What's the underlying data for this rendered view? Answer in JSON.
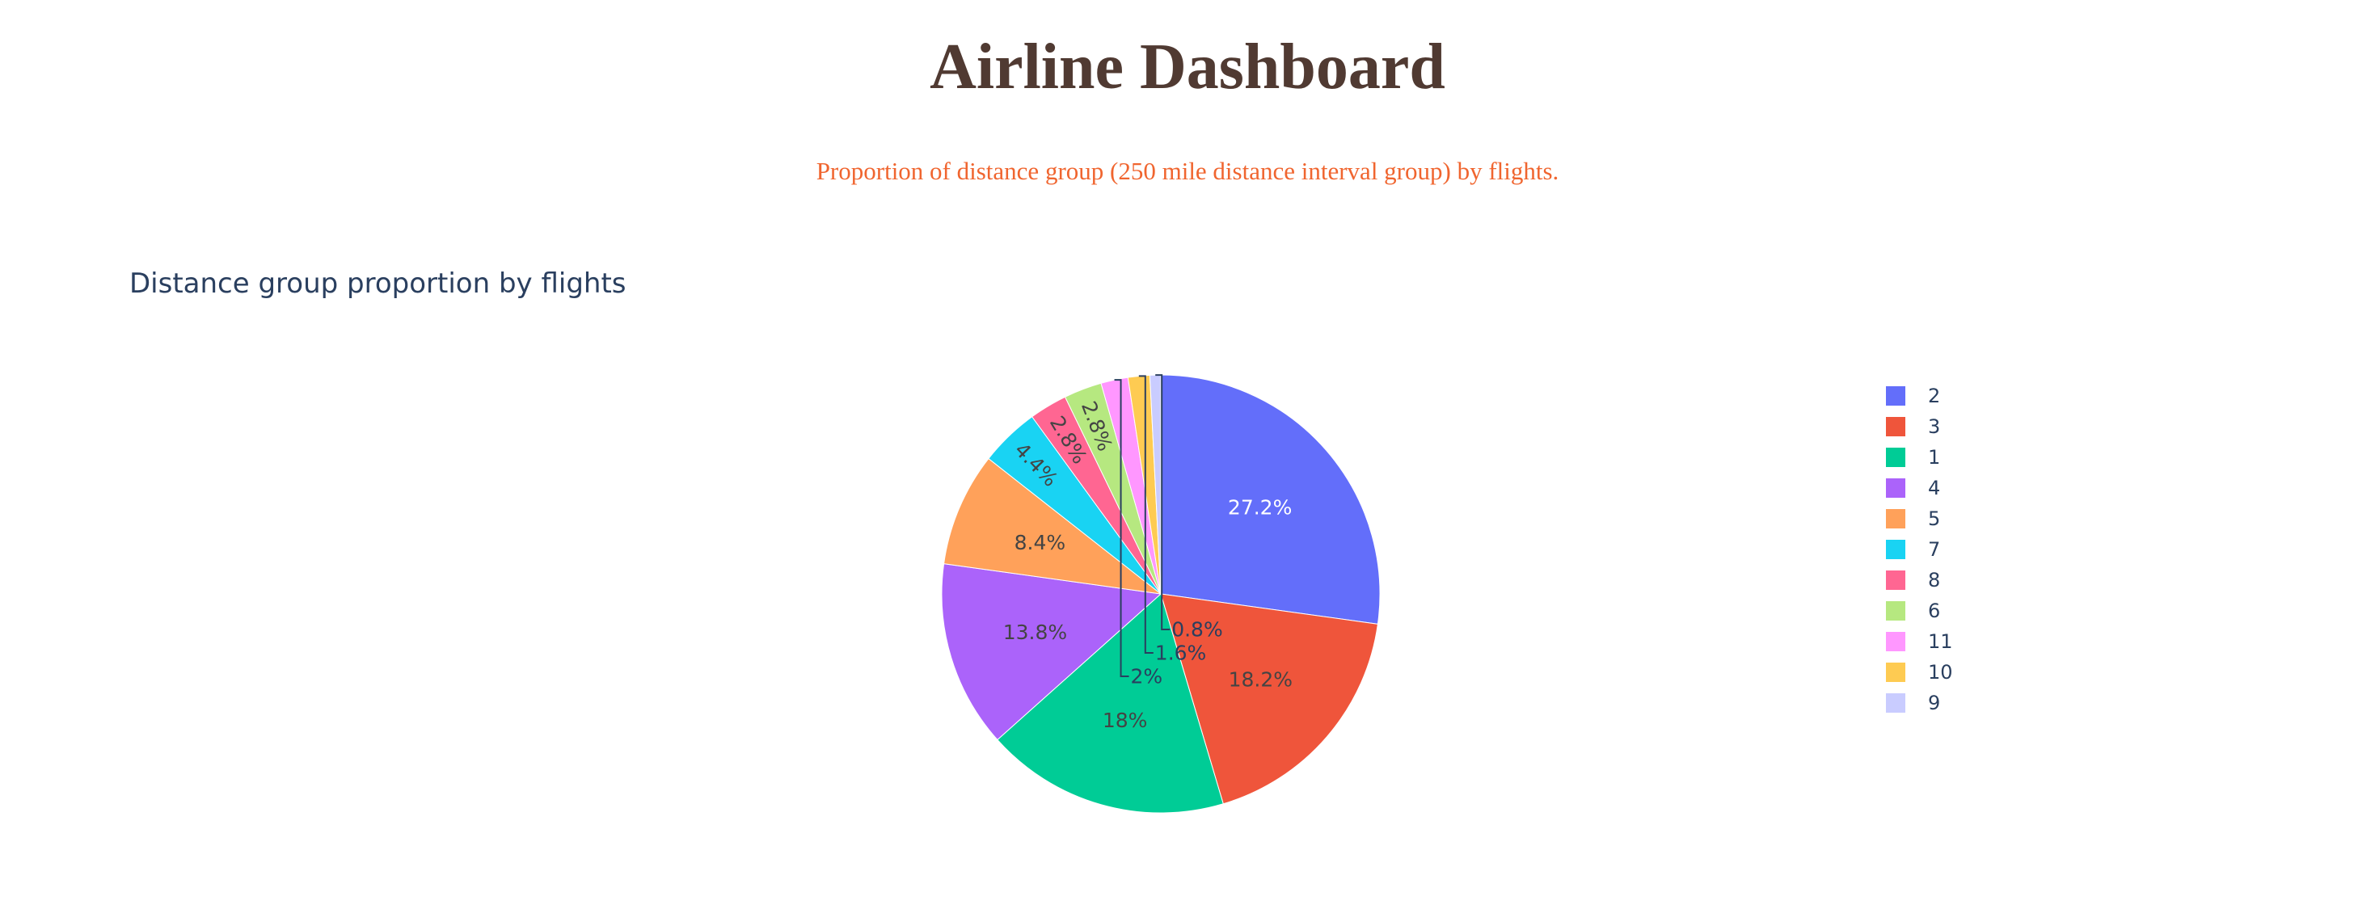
{
  "header": {
    "title": "Airline Dashboard",
    "subtitle": "Proportion of distance group (250 mile distance interval group) by flights."
  },
  "chart_data": {
    "type": "pie",
    "title": "Distance group proportion by flights",
    "legend_position": "right",
    "direction": "clockwise",
    "start": "top",
    "slices": [
      {
        "label": "2",
        "value": 27.2,
        "text": "27.2%",
        "color": "#636EFA"
      },
      {
        "label": "3",
        "value": 18.2,
        "text": "18.2%",
        "color": "#EF553B"
      },
      {
        "label": "1",
        "value": 18.0,
        "text": "18%",
        "color": "#00CC96"
      },
      {
        "label": "4",
        "value": 13.8,
        "text": "13.8%",
        "color": "#AB63FA"
      },
      {
        "label": "5",
        "value": 8.4,
        "text": "8.4%",
        "color": "#FFA15A"
      },
      {
        "label": "7",
        "value": 4.4,
        "text": "4.4%",
        "color": "#19D3F3"
      },
      {
        "label": "8",
        "value": 2.8,
        "text": "2.8%",
        "color": "#FF6692"
      },
      {
        "label": "6",
        "value": 2.8,
        "text": "2.8%",
        "color": "#B6E880"
      },
      {
        "label": "11",
        "value": 2.0,
        "text": "2%",
        "color": "#FF97FF"
      },
      {
        "label": "10",
        "value": 1.6,
        "text": "1.6%",
        "color": "#FECB52"
      },
      {
        "label": "9",
        "value": 0.8,
        "text": "0.8%",
        "color": "#C9CCFF"
      }
    ]
  }
}
